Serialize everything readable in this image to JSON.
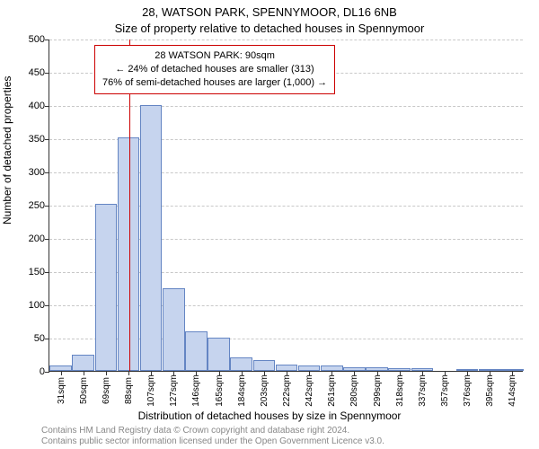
{
  "title_line1": "28, WATSON PARK, SPENNYMOOR, DL16 6NB",
  "title_line2": "Size of property relative to detached houses in Spennymoor",
  "ylabel": "Number of detached properties",
  "xlabel": "Distribution of detached houses by size in Spennymoor",
  "footer_line1": "Contains HM Land Registry data © Crown copyright and database right 2024.",
  "footer_line2": "Contains public sector information licensed under the Open Government Licence v3.0.",
  "annotation": {
    "line1": "28 WATSON PARK: 90sqm",
    "line2": "← 24% of detached houses are smaller (313)",
    "line3": "76% of semi-detached houses are larger (1,000) →"
  },
  "chart": {
    "type": "histogram",
    "ylim": [
      0,
      500
    ],
    "ytick_step": 50,
    "background_color": "#ffffff",
    "grid_color": "#c8c8c8",
    "bar_fill": "#c6d4ee",
    "bar_border": "#6485c3",
    "marker_color": "#cc0000",
    "marker_x_index": 3.05,
    "ticks_label_fontsize": 10,
    "axis_fontsize": 12,
    "title_fontsize": 13,
    "categories": [
      "31sqm",
      "50sqm",
      "69sqm",
      "88sqm",
      "107sqm",
      "127sqm",
      "146sqm",
      "165sqm",
      "184sqm",
      "203sqm",
      "222sqm",
      "242sqm",
      "261sqm",
      "280sqm",
      "299sqm",
      "318sqm",
      "337sqm",
      "357sqm",
      "376sqm",
      "395sqm",
      "414sqm"
    ],
    "values": [
      8,
      25,
      252,
      352,
      400,
      125,
      60,
      50,
      20,
      16,
      10,
      8,
      8,
      6,
      5,
      4,
      4,
      0,
      3,
      2,
      2
    ]
  }
}
